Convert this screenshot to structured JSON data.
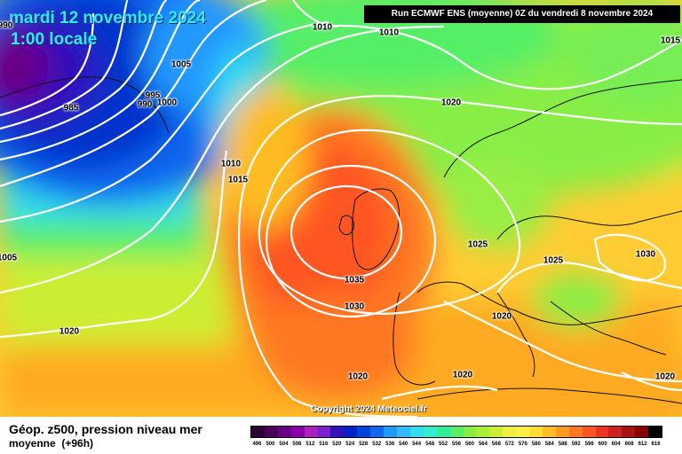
{
  "header": {
    "date": "mardi 12 novembre 2024",
    "local_time": "1:00 locale",
    "run": "Run ECMWF ENS (moyenne) 0Z du vendredi 8 novembre 2024",
    "copyright": "Copyright 2024 Meteociel.fr"
  },
  "legend": {
    "title": "Géop. z500, pression niveau mer",
    "subtitle": "moyenne",
    "lead": "(+96h)",
    "values": [
      "496",
      "500",
      "504",
      "508",
      "512",
      "516",
      "520",
      "524",
      "528",
      "532",
      "536",
      "540",
      "544",
      "548",
      "552",
      "556",
      "560",
      "564",
      "568",
      "572",
      "576",
      "580",
      "584",
      "588",
      "592",
      "596",
      "600",
      "604",
      "608",
      "612",
      "616"
    ],
    "colors": [
      "#2a0033",
      "#4a0055",
      "#6a0088",
      "#8a00aa",
      "#aa22bb",
      "#7722cc",
      "#3311bb",
      "#0022cc",
      "#0044dd",
      "#1166ee",
      "#2299ff",
      "#33bbff",
      "#33ddee",
      "#33eecc",
      "#33ee99",
      "#55ee66",
      "#88ee44",
      "#aaee33",
      "#ccee33",
      "#eeee44",
      "#ffee44",
      "#ffdd33",
      "#ffbb22",
      "#ff9922",
      "#ff7722",
      "#ff5522",
      "#ee3322",
      "#cc2222",
      "#aa1111",
      "#880000",
      "#000000"
    ]
  },
  "isobars": [
    {
      "value": "1010"
    },
    {
      "value": "1010"
    },
    {
      "value": "1015"
    },
    {
      "value": "1005"
    },
    {
      "value": "995"
    },
    {
      "value": "990"
    },
    {
      "value": "1000"
    },
    {
      "value": "985"
    },
    {
      "value": "1010"
    },
    {
      "value": "1015"
    },
    {
      "value": "1020"
    },
    {
      "value": "1035"
    },
    {
      "value": "1030"
    },
    {
      "value": "1025"
    },
    {
      "value": "1025"
    },
    {
      "value": "1030"
    },
    {
      "value": "1020"
    },
    {
      "value": "1020"
    },
    {
      "value": "1020"
    },
    {
      "value": "1020"
    },
    {
      "value": "1020"
    },
    {
      "value": "1005"
    },
    {
      "value": "990"
    }
  ]
}
